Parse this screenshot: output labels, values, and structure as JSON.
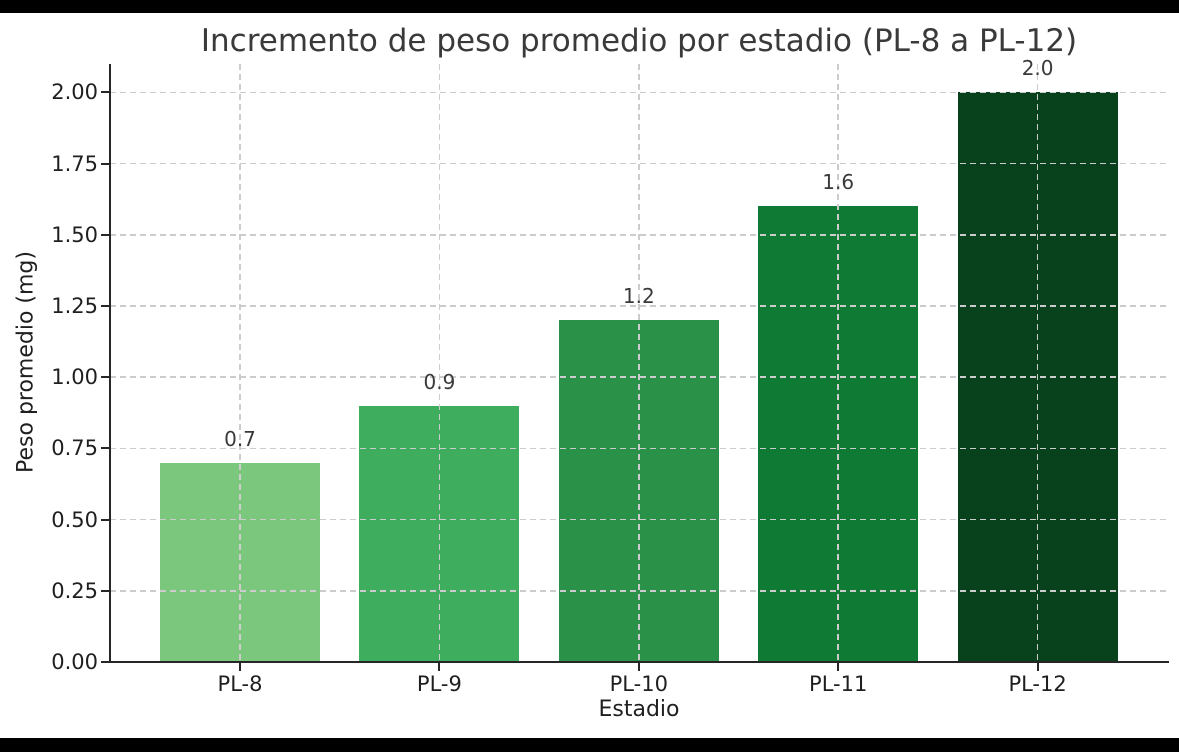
{
  "figure": {
    "background": "#ffffff",
    "letterbox_color": "#000000"
  },
  "chart_data": {
    "type": "bar",
    "title": "Incremento de peso promedio por estadio (PL-8 a PL-12)",
    "xlabel": "Estadio",
    "ylabel": "Peso promedio (mg)",
    "categories": [
      "PL-8",
      "PL-9",
      "PL-10",
      "PL-11",
      "PL-12"
    ],
    "values": [
      0.7,
      0.9,
      1.2,
      1.6,
      2.0
    ],
    "bar_labels": [
      "0.7",
      "0.9",
      "1.2",
      "1.6",
      "2.0"
    ],
    "bar_colors": [
      "#7bc77d",
      "#3fad5e",
      "#2a9148",
      "#0e7a33",
      "#07421d"
    ],
    "ylim": [
      0,
      2.1
    ],
    "yticks": [
      0,
      0.25,
      0.5,
      0.75,
      1.0,
      1.25,
      1.5,
      1.75,
      2.0
    ],
    "ytick_labels": [
      "0.00",
      "0.25",
      "0.50",
      "0.75",
      "1.00",
      "1.25",
      "1.50",
      "1.75",
      "2.00"
    ],
    "grid": {
      "visible": true,
      "style": "dashed",
      "color": "#cccccc",
      "axis": "both",
      "above_bars": true
    },
    "legend": {
      "visible": false
    },
    "text_color": "#1f1f1f",
    "title_color": "#3a3a3a",
    "spine_color": "#262626"
  }
}
